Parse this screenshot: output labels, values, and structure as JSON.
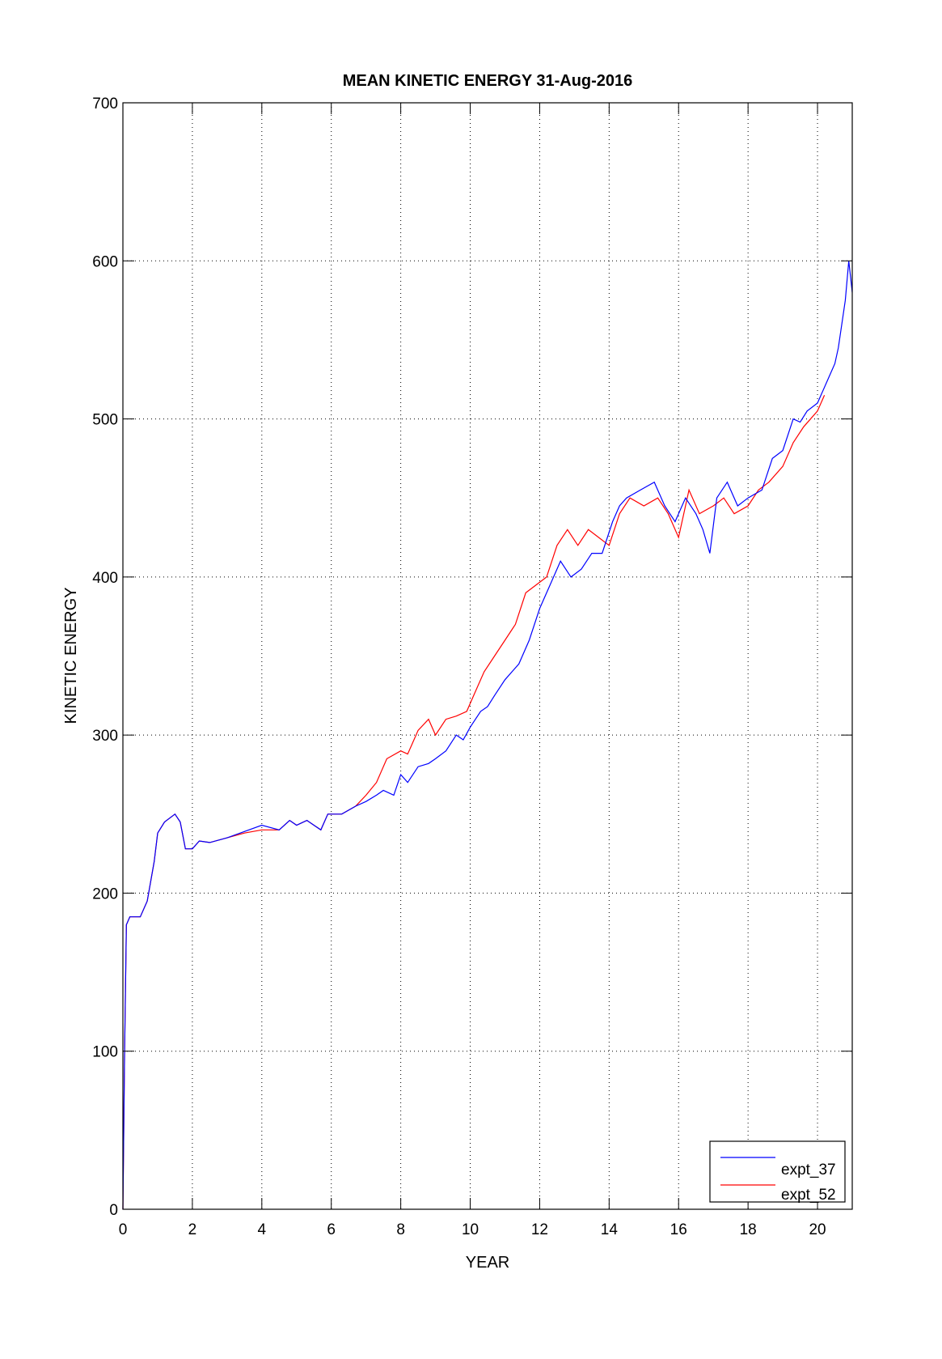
{
  "chart_data": {
    "type": "line",
    "title": "MEAN KINETIC ENERGY 31-Aug-2016",
    "xlabel": "YEAR",
    "ylabel": "KINETIC ENERGY",
    "xlim": [
      0,
      21
    ],
    "ylim": [
      0,
      700
    ],
    "xticks": [
      0,
      2,
      4,
      6,
      8,
      10,
      12,
      14,
      16,
      18,
      20
    ],
    "yticks": [
      0,
      100,
      200,
      300,
      400,
      500,
      600,
      700
    ],
    "grid": true,
    "legend_position": "bottom-right",
    "series": [
      {
        "name": "expt_37",
        "color": "#0000ff",
        "x": [
          0,
          0.05,
          0.1,
          0.2,
          0.5,
          0.7,
          0.9,
          1.0,
          1.2,
          1.5,
          1.65,
          1.8,
          2.0,
          2.2,
          2.5,
          3,
          3.5,
          4,
          4.5,
          4.8,
          5,
          5.3,
          5.5,
          5.7,
          5.9,
          6.3,
          6.7,
          7,
          7.3,
          7.5,
          7.8,
          8,
          8.2,
          8.5,
          8.8,
          9,
          9.3,
          9.6,
          9.8,
          10,
          10.3,
          10.5,
          10.7,
          11,
          11.2,
          11.4,
          11.7,
          12,
          12.3,
          12.6,
          12.9,
          13.2,
          13.5,
          13.8,
          14.1,
          14.3,
          14.5,
          14.9,
          15.3,
          15.6,
          15.9,
          16.2,
          16.5,
          16.7,
          16.9,
          17.1,
          17.4,
          17.7,
          18,
          18.4,
          18.7,
          19,
          19.3,
          19.5,
          19.7,
          20,
          20.3,
          20.5,
          20.6,
          20.8,
          20.9,
          21
        ],
        "y": [
          0,
          100,
          180,
          185,
          185,
          195,
          220,
          238,
          245,
          250,
          245,
          228,
          228,
          233,
          232,
          235,
          239,
          243,
          240,
          246,
          243,
          246,
          243,
          240,
          250,
          250,
          255,
          258,
          262,
          265,
          262,
          275,
          270,
          280,
          282,
          285,
          290,
          300,
          297,
          305,
          315,
          318,
          325,
          335,
          340,
          345,
          360,
          380,
          395,
          410,
          400,
          405,
          415,
          415,
          435,
          445,
          450,
          455,
          460,
          445,
          435,
          450,
          440,
          430,
          415,
          450,
          460,
          445,
          450,
          455,
          475,
          480,
          500,
          498,
          505,
          510,
          525,
          535,
          545,
          575,
          600,
          580
        ]
      },
      {
        "name": "expt_52",
        "color": "#ff0000",
        "x": [
          0,
          0.05,
          0.1,
          0.2,
          0.5,
          0.7,
          0.9,
          1.0,
          1.2,
          1.5,
          1.65,
          1.8,
          2.0,
          2.2,
          2.5,
          3,
          3.5,
          4,
          4.5,
          4.8,
          5,
          5.3,
          5.5,
          5.7,
          5.9,
          6.3,
          6.7,
          7,
          7.3,
          7.6,
          8,
          8.2,
          8.5,
          8.8,
          9,
          9.3,
          9.6,
          9.9,
          10.1,
          10.4,
          10.7,
          11,
          11.3,
          11.6,
          11.9,
          12.2,
          12.5,
          12.8,
          13.1,
          13.4,
          13.7,
          14,
          14.3,
          14.6,
          15,
          15.4,
          15.7,
          16,
          16.3,
          16.6,
          17,
          17.3,
          17.6,
          18,
          18.3,
          18.6,
          19,
          19.3,
          19.6,
          20,
          20.2
        ],
        "y": [
          0,
          100,
          180,
          185,
          185,
          195,
          220,
          238,
          245,
          250,
          245,
          228,
          228,
          233,
          232,
          235,
          238,
          240,
          240,
          246,
          243,
          246,
          243,
          240,
          250,
          250,
          255,
          262,
          270,
          285,
          290,
          288,
          303,
          310,
          300,
          310,
          312,
          315,
          325,
          340,
          350,
          360,
          370,
          390,
          395,
          400,
          420,
          430,
          420,
          430,
          425,
          420,
          440,
          450,
          445,
          450,
          440,
          425,
          455,
          440,
          445,
          450,
          440,
          445,
          455,
          460,
          470,
          485,
          495,
          505,
          515
        ]
      }
    ]
  }
}
